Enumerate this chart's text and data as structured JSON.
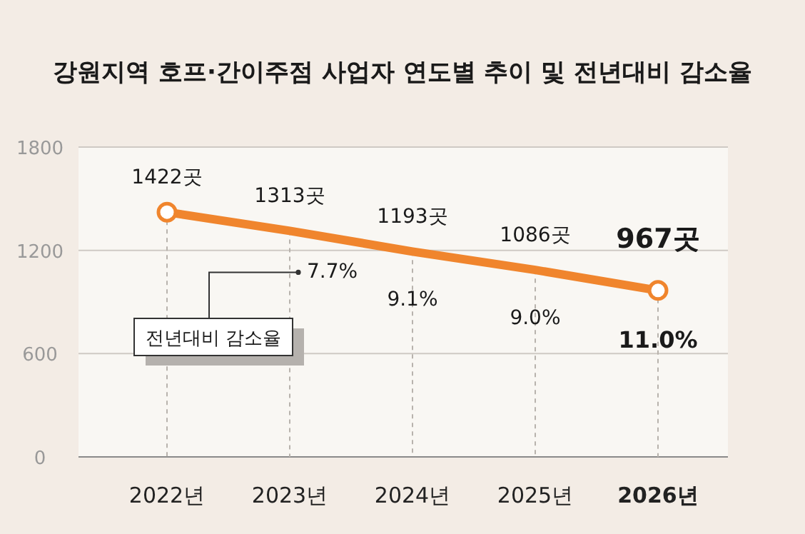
{
  "chart_data": {
    "type": "line",
    "title": "강원지역 호프·간이주점 사업자 연도별 추이 및 전년대비 감소율",
    "categories": [
      "2022년",
      "2023년",
      "2024년",
      "2025년",
      "2026년"
    ],
    "values": [
      1422,
      1313,
      1193,
      1086,
      967
    ],
    "value_labels": [
      "1422곳",
      "1313곳",
      "1193곳",
      "1086곳",
      "967곳"
    ],
    "color": "#f0852d",
    "ylim": [
      0,
      1800
    ],
    "yticks": [
      0,
      600,
      1200,
      1800
    ],
    "grid": true,
    "line_style": "solid",
    "annotations": [
      "7.7%",
      "9.1%",
      "9.0%",
      "11.0%",
      "전년대비 감소율"
    ]
  }
}
